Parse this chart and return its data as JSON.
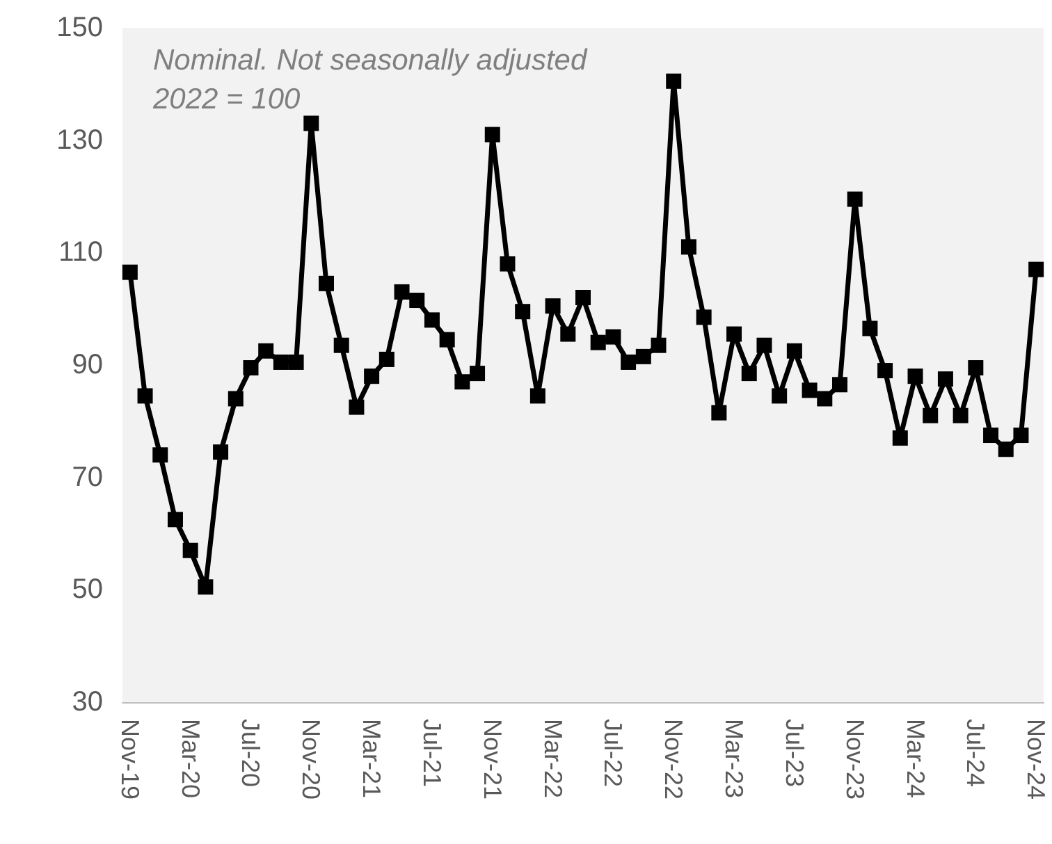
{
  "chart_data": {
    "type": "line",
    "annotations": [
      "Nominal. Not seasonally adjusted",
      "2022 = 100"
    ],
    "categories": [
      "Nov-19",
      null,
      null,
      null,
      "Mar-20",
      null,
      null,
      null,
      "Jul-20",
      null,
      null,
      null,
      "Nov-20",
      null,
      null,
      null,
      "Mar-21",
      null,
      null,
      null,
      "Jul-21",
      null,
      null,
      null,
      "Nov-21",
      null,
      null,
      null,
      "Mar-22",
      null,
      null,
      null,
      "Jul-22",
      null,
      null,
      null,
      "Nov-22",
      null,
      null,
      null,
      "Mar-23",
      null,
      null,
      null,
      "Jul-23",
      null,
      null,
      null,
      "Nov-23",
      null,
      null,
      null,
      "Mar-24",
      null,
      null,
      null,
      "Jul-24",
      null,
      null,
      null,
      "Nov-24"
    ],
    "series": [
      {
        "color": "#000000",
        "values": [
          106.5,
          84.5,
          74,
          62.5,
          57,
          50.5,
          74.5,
          84,
          89.5,
          92.5,
          90.5,
          90.5,
          133,
          104.5,
          93.5,
          82.5,
          88,
          91,
          103,
          101.5,
          98,
          94.5,
          87,
          88.5,
          131,
          108,
          99.5,
          84.5,
          100.5,
          95.5,
          102,
          94,
          95,
          90.5,
          91.5,
          93.5,
          140.5,
          111,
          98.5,
          81.5,
          95.5,
          88.5,
          93.5,
          84.5,
          92.5,
          85.5,
          84,
          86.5,
          119.5,
          96.5,
          89,
          77,
          88,
          81,
          87.5,
          81,
          89.5,
          77.5,
          75,
          77.5,
          107
        ]
      }
    ],
    "ylim": [
      30,
      150
    ],
    "yticks": [
      30,
      50,
      70,
      90,
      110,
      130,
      150
    ],
    "grid": false,
    "marker": "square",
    "line_style": "solid"
  }
}
